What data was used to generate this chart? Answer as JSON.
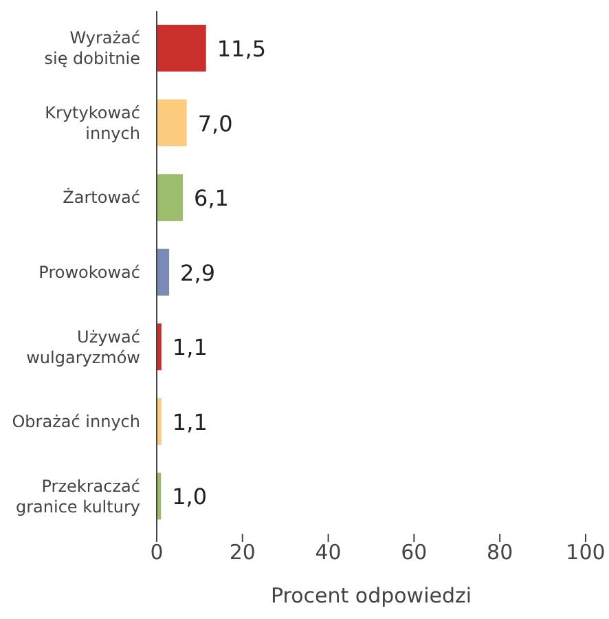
{
  "chart_data": {
    "type": "bar",
    "orientation": "horizontal",
    "xlabel": "Procent odpowiedzi",
    "categories": [
      "Wyrażać\nsię dobitnie",
      "Krytykować\ninnych",
      "Żartować",
      "Prowokować",
      "Używać\nwulgaryzmów",
      "Obrażać innych",
      "Przekraczać\ngranice kultury"
    ],
    "values": [
      11.5,
      7.0,
      6.1,
      2.9,
      1.1,
      1.1,
      1.0
    ],
    "colors": [
      "#c9302c",
      "#fbcb7e",
      "#9cbd6b",
      "#7a8cb6",
      "#c9302c",
      "#fbcb7e",
      "#9cbd6b"
    ],
    "value_labels": [
      "11,5",
      "7,0",
      "6,1",
      "2,9",
      "1,1",
      "1,1",
      "1,0"
    ],
    "xlim": [
      0,
      100
    ],
    "xticks": [
      0,
      20,
      40,
      60,
      80,
      100
    ],
    "grid": false
  }
}
